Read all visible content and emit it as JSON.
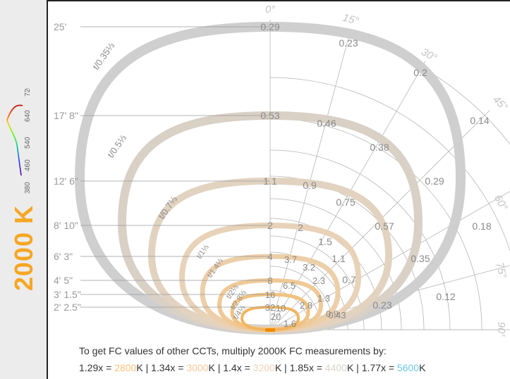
{
  "sidebar": {
    "cct": "2000 K",
    "spectrum_ticks": [
      "380",
      "460",
      "540",
      "640",
      "720"
    ],
    "colors": {
      "cct": "#f5a623",
      "panel": "#ececec"
    }
  },
  "footer": {
    "line1": "To get FC values of other CCTs, multiply 2000K FC measurements by:",
    "conversions": [
      {
        "factor": "1.29x = ",
        "cct": "2800",
        "unit": "K",
        "sep": " | ",
        "color": "#f9c27a"
      },
      {
        "factor": "1.34x = ",
        "cct": "3000",
        "unit": "K",
        "sep": " | ",
        "color": "#f6c89b"
      },
      {
        "factor": "1.4x = ",
        "cct": "3200",
        "unit": "K",
        "sep": " | ",
        "color": "#f0d3b8"
      },
      {
        "factor": "1.85x = ",
        "cct": "4400",
        "unit": "K",
        "sep": " | ",
        "color": "#d7d2cc"
      },
      {
        "factor": "1.77x = ",
        "cct": "5600",
        "unit": "K",
        "sep": "",
        "color": "#6fc8e8"
      }
    ]
  },
  "chart_data": {
    "type": "polar-isofootcandle",
    "angle_labels": [
      "0°",
      "15°",
      "30°",
      "45°",
      "60°",
      "75°",
      "90°"
    ],
    "distance_labels": [
      "25'",
      "17' 8\"",
      "12' 6\"",
      "8' 10\"",
      "6' 3\"",
      "4' 5\"",
      "3' 1.5\"",
      "2' 2.5\""
    ],
    "beam_labels": [
      "t/0.35⅓",
      "t/0.5⅓",
      "t/0.7⅓",
      "t/1⅓",
      "t/1.4⅓",
      "t/2⅓",
      "t/2.8⅓",
      "t/4⅓"
    ],
    "series": [
      {
        "distance": "25'",
        "center": "0.29",
        "values": [
          "0.23",
          "0.2",
          "0.14"
        ],
        "color": "#cfcfcf"
      },
      {
        "distance": "17' 8\"",
        "center": "0.53",
        "values": [
          "0.46",
          "0.38",
          "0.29",
          "0.18"
        ],
        "color": "#d9d0c6"
      },
      {
        "distance": "12' 6\"",
        "center": "1.1",
        "values": [
          "0.9",
          "0.75",
          "0.57",
          "0.35",
          "0.12"
        ],
        "color": "#e2d3c1"
      },
      {
        "distance": "8' 10\"",
        "center": "2",
        "values": [
          "2",
          "1.5",
          "1.1",
          "0.7",
          "0.23"
        ],
        "color": "#e8d2b8"
      },
      {
        "distance": "6' 3\"",
        "center": "4",
        "values": [
          "3.7",
          "3.2",
          "2.3",
          "1.3",
          "0.43"
        ],
        "color": "#eccfa9"
      },
      {
        "distance": "4' 5\"",
        "center": "8",
        "values": [
          "6.5",
          "2.8",
          "0.9"
        ],
        "color": "#efc997"
      },
      {
        "distance": "3' 1.5\"",
        "center": "16",
        "values": [
          "10",
          "1.6"
        ],
        "color": "#f1c280"
      },
      {
        "distance": "2' 2.5\"",
        "center": "32",
        "values": [
          "20"
        ],
        "color": "#f2b560"
      }
    ],
    "colors": {
      "grid": "#b5b5b5",
      "text": "#8a8a8a",
      "source": "#f08a00"
    }
  }
}
